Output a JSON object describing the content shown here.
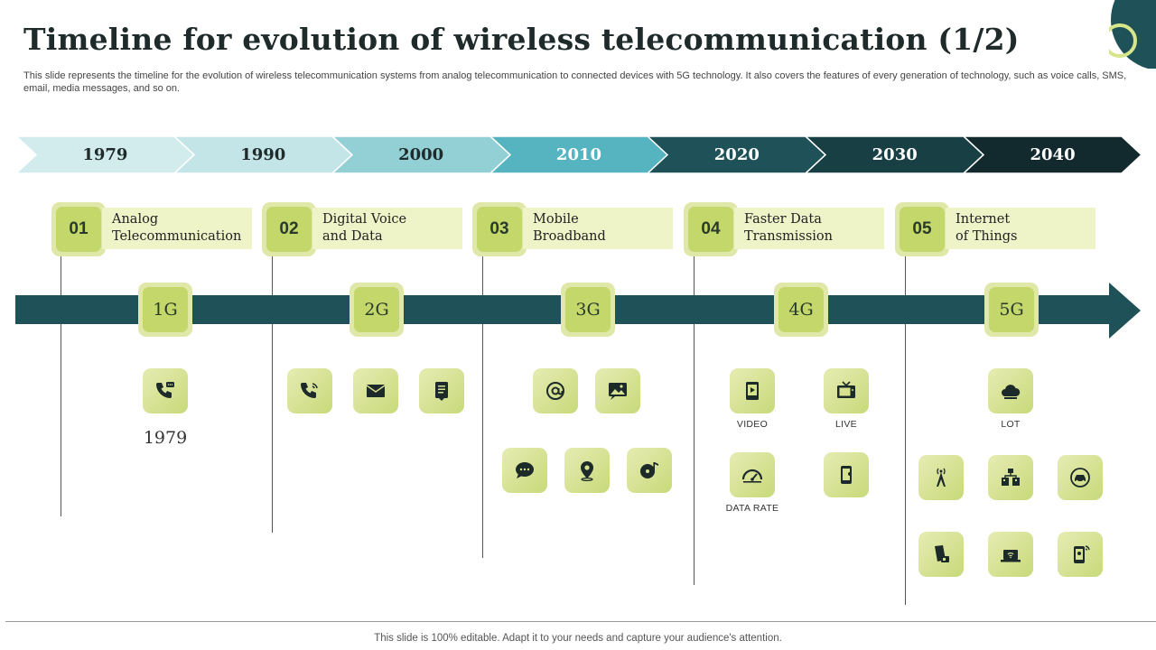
{
  "slide": {
    "title": "Timeline for evolution of wireless telecommunication (1/2)",
    "subtitle": "This slide represents the timeline for the evolution of wireless telecommunication systems from analog telecommunication to connected devices with 5G technology. It also covers the features of every generation of technology, such as voice calls, SMS,  email, media messages, and so on.",
    "footer": "This slide is 100% editable. Adapt it to your needs and capture your audience's attention."
  },
  "years": [
    {
      "label": "1979",
      "fill": "#d2ecee",
      "text": "#1f2a2a"
    },
    {
      "label": "1990",
      "fill": "#c4e5e8",
      "text": "#1f2a2a"
    },
    {
      "label": "2000",
      "fill": "#92d0d6",
      "text": "#1f2a2a"
    },
    {
      "label": "2010",
      "fill": "#55b4bf",
      "text": "#ffffff"
    },
    {
      "label": "2020",
      "fill": "#1e5258",
      "text": "#ffffff"
    },
    {
      "label": "2030",
      "fill": "#183f44",
      "text": "#ffffff"
    },
    {
      "label": "2040",
      "fill": "#122a2e",
      "text": "#ffffff"
    }
  ],
  "generations": [
    {
      "num": "01",
      "line1": "Analog",
      "line2": "Telecommunication",
      "badge": "1G"
    },
    {
      "num": "02",
      "line1": "Digital Voice",
      "line2": "and Data",
      "badge": "2G"
    },
    {
      "num": "03",
      "line1": "Mobile",
      "line2": "Broadband",
      "badge": "3G"
    },
    {
      "num": "04",
      "line1": "Faster Data",
      "line2": "Transmission",
      "badge": "4G"
    },
    {
      "num": "05",
      "line1": "Internet",
      "line2": "of Things",
      "badge": "5G"
    }
  ],
  "features": {
    "g1_year": "1979",
    "video": "VIDEO",
    "live": "LIVE",
    "data_rate": "DATA RATE",
    "lot": "LOT"
  },
  "icons": [
    "phone-chat-icon",
    "phone-icon",
    "envelope-icon",
    "document-icon",
    "at-sign-icon",
    "image-message-icon",
    "chat-bubble-icon",
    "location-pin-icon",
    "music-disc-icon",
    "video-icon",
    "tv-icon",
    "speedometer-icon",
    "smartphone-icon",
    "cloud-icon",
    "tower-icon",
    "network-icon",
    "smart-car-icon",
    "smart-card-icon",
    "laptop-wifi-icon",
    "smartphone-wifi-icon"
  ],
  "colors": {
    "accent_dark": "#1e5258",
    "badge_light": "#dfe8a8",
    "badge_mid": "#c3d76a",
    "label_bg": "#eef3c8"
  }
}
